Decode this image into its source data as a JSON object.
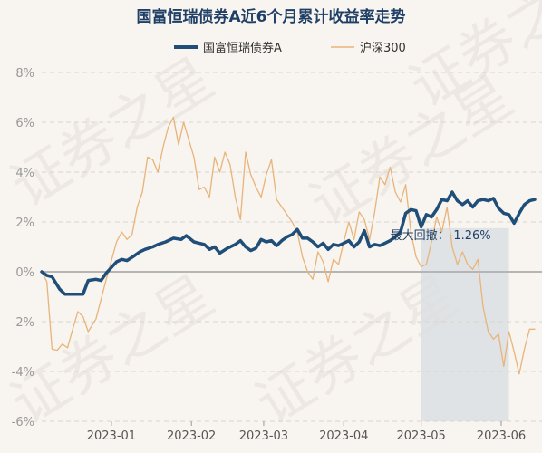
{
  "chart_data": {
    "type": "line",
    "title": "国富恒瑞债券A近6个月累计收益率走势",
    "ylim": [
      -6,
      8
    ],
    "yticks": [
      -6,
      -4,
      -2,
      0,
      2,
      4,
      6,
      8
    ],
    "ytick_labels": [
      "-6%",
      "-4%",
      "-2%",
      "0%",
      "2%",
      "4%",
      "6%",
      "8%"
    ],
    "x_range": [
      "2022-12-05",
      "2023-06-14"
    ],
    "xticks": [
      {
        "date": "2023-01-01",
        "label": "2023-01"
      },
      {
        "date": "2023-02-01",
        "label": "2023-02"
      },
      {
        "date": "2023-03-01",
        "label": "2023-03"
      },
      {
        "date": "2023-04-01",
        "label": "2023-04"
      },
      {
        "date": "2023-05-01",
        "label": "2023-05"
      },
      {
        "date": "2023-06-01",
        "label": "2023-06"
      }
    ],
    "grid": "horizontal",
    "legend_position": "top",
    "series": [
      {
        "name": "国富恒瑞债券A",
        "color": "#1f4e79",
        "points": [
          [
            "2022-12-05",
            0.0
          ],
          [
            "2022-12-07",
            -0.15
          ],
          [
            "2022-12-09",
            -0.2
          ],
          [
            "2022-12-12",
            -0.7
          ],
          [
            "2022-12-14",
            -0.9
          ],
          [
            "2022-12-16",
            -0.9
          ],
          [
            "2022-12-19",
            -0.9
          ],
          [
            "2022-12-21",
            -0.9
          ],
          [
            "2022-12-23",
            -0.35
          ],
          [
            "2022-12-26",
            -0.3
          ],
          [
            "2022-12-28",
            -0.35
          ],
          [
            "2022-12-30",
            -0.05
          ],
          [
            "2023-01-03",
            0.4
          ],
          [
            "2023-01-05",
            0.5
          ],
          [
            "2023-01-07",
            0.45
          ],
          [
            "2023-01-10",
            0.65
          ],
          [
            "2023-01-12",
            0.8
          ],
          [
            "2023-01-14",
            0.9
          ],
          [
            "2023-01-17",
            1.0
          ],
          [
            "2023-01-19",
            1.1
          ],
          [
            "2023-01-22",
            1.2
          ],
          [
            "2023-01-25",
            1.35
          ],
          [
            "2023-01-28",
            1.3
          ],
          [
            "2023-01-30",
            1.45
          ],
          [
            "2023-02-02",
            1.2
          ],
          [
            "2023-02-04",
            1.15
          ],
          [
            "2023-02-06",
            1.1
          ],
          [
            "2023-02-08",
            0.9
          ],
          [
            "2023-02-10",
            1.0
          ],
          [
            "2023-02-12",
            0.75
          ],
          [
            "2023-02-15",
            0.95
          ],
          [
            "2023-02-18",
            1.1
          ],
          [
            "2023-02-20",
            1.25
          ],
          [
            "2023-02-22",
            1.0
          ],
          [
            "2023-02-24",
            0.85
          ],
          [
            "2023-02-26",
            0.95
          ],
          [
            "2023-02-28",
            1.3
          ],
          [
            "2023-03-02",
            1.2
          ],
          [
            "2023-03-04",
            1.25
          ],
          [
            "2023-03-06",
            1.05
          ],
          [
            "2023-03-08",
            1.25
          ],
          [
            "2023-03-10",
            1.4
          ],
          [
            "2023-03-12",
            1.5
          ],
          [
            "2023-03-14",
            1.7
          ],
          [
            "2023-03-16",
            1.35
          ],
          [
            "2023-03-18",
            1.35
          ],
          [
            "2023-03-20",
            1.2
          ],
          [
            "2023-03-22",
            1.0
          ],
          [
            "2023-03-24",
            1.15
          ],
          [
            "2023-03-26",
            0.9
          ],
          [
            "2023-03-28",
            1.1
          ],
          [
            "2023-03-30",
            1.05
          ],
          [
            "2023-04-01",
            1.15
          ],
          [
            "2023-04-03",
            1.25
          ],
          [
            "2023-04-05",
            1.0
          ],
          [
            "2023-04-07",
            1.2
          ],
          [
            "2023-04-09",
            1.65
          ],
          [
            "2023-04-11",
            1.0
          ],
          [
            "2023-04-13",
            1.1
          ],
          [
            "2023-04-15",
            1.05
          ],
          [
            "2023-04-17",
            1.15
          ],
          [
            "2023-04-19",
            1.25
          ],
          [
            "2023-04-21",
            1.4
          ],
          [
            "2023-04-23",
            1.6
          ],
          [
            "2023-04-25",
            2.35
          ],
          [
            "2023-04-27",
            2.5
          ],
          [
            "2023-04-29",
            2.45
          ],
          [
            "2023-05-01",
            1.8
          ],
          [
            "2023-05-03",
            2.3
          ],
          [
            "2023-05-05",
            2.2
          ],
          [
            "2023-05-07",
            2.5
          ],
          [
            "2023-05-09",
            2.9
          ],
          [
            "2023-05-11",
            2.85
          ],
          [
            "2023-05-13",
            3.2
          ],
          [
            "2023-05-15",
            2.85
          ],
          [
            "2023-05-17",
            2.7
          ],
          [
            "2023-05-19",
            2.85
          ],
          [
            "2023-05-21",
            2.6
          ],
          [
            "2023-05-23",
            2.85
          ],
          [
            "2023-05-25",
            2.9
          ],
          [
            "2023-05-27",
            2.85
          ],
          [
            "2023-05-29",
            2.95
          ],
          [
            "2023-05-31",
            2.55
          ],
          [
            "2023-06-02",
            2.35
          ],
          [
            "2023-06-04",
            2.3
          ],
          [
            "2023-06-06",
            1.95
          ],
          [
            "2023-06-08",
            2.35
          ],
          [
            "2023-06-10",
            2.7
          ],
          [
            "2023-06-12",
            2.85
          ],
          [
            "2023-06-14",
            2.9
          ]
        ]
      },
      {
        "name": "沪深300",
        "color": "#e8b47a",
        "points": [
          [
            "2022-12-05",
            0.0
          ],
          [
            "2022-12-07",
            -0.4
          ],
          [
            "2022-12-09",
            -3.1
          ],
          [
            "2022-12-11",
            -3.15
          ],
          [
            "2022-12-13",
            -2.9
          ],
          [
            "2022-12-15",
            -3.05
          ],
          [
            "2022-12-17",
            -2.3
          ],
          [
            "2022-12-19",
            -1.6
          ],
          [
            "2022-12-21",
            -1.8
          ],
          [
            "2022-12-23",
            -2.4
          ],
          [
            "2022-12-26",
            -1.9
          ],
          [
            "2022-12-28",
            -1.1
          ],
          [
            "2022-12-30",
            -0.3
          ],
          [
            "2023-01-03",
            1.2
          ],
          [
            "2023-01-05",
            1.6
          ],
          [
            "2023-01-07",
            1.3
          ],
          [
            "2023-01-09",
            1.5
          ],
          [
            "2023-01-11",
            2.6
          ],
          [
            "2023-01-13",
            3.2
          ],
          [
            "2023-01-15",
            4.6
          ],
          [
            "2023-01-17",
            4.5
          ],
          [
            "2023-01-19",
            4.0
          ],
          [
            "2023-01-21",
            5.0
          ],
          [
            "2023-01-23",
            5.8
          ],
          [
            "2023-01-25",
            6.2
          ],
          [
            "2023-01-27",
            5.1
          ],
          [
            "2023-01-29",
            6.0
          ],
          [
            "2023-01-31",
            5.3
          ],
          [
            "2023-02-02",
            4.6
          ],
          [
            "2023-02-04",
            3.3
          ],
          [
            "2023-02-06",
            3.4
          ],
          [
            "2023-02-08",
            3.0
          ],
          [
            "2023-02-10",
            4.6
          ],
          [
            "2023-02-12",
            4.0
          ],
          [
            "2023-02-14",
            4.8
          ],
          [
            "2023-02-16",
            4.3
          ],
          [
            "2023-02-18",
            3.0
          ],
          [
            "2023-02-20",
            2.1
          ],
          [
            "2023-02-22",
            4.8
          ],
          [
            "2023-02-24",
            3.9
          ],
          [
            "2023-02-26",
            3.4
          ],
          [
            "2023-02-28",
            3.0
          ],
          [
            "2023-03-02",
            3.9
          ],
          [
            "2023-03-04",
            4.5
          ],
          [
            "2023-03-06",
            2.9
          ],
          [
            "2023-03-08",
            2.6
          ],
          [
            "2023-03-10",
            2.3
          ],
          [
            "2023-03-12",
            2.0
          ],
          [
            "2023-03-14",
            1.6
          ],
          [
            "2023-03-16",
            0.6
          ],
          [
            "2023-03-18",
            0.0
          ],
          [
            "2023-03-20",
            -0.3
          ],
          [
            "2023-03-22",
            0.8
          ],
          [
            "2023-03-24",
            0.4
          ],
          [
            "2023-03-26",
            -0.4
          ],
          [
            "2023-03-28",
            0.5
          ],
          [
            "2023-03-30",
            0.3
          ],
          [
            "2023-04-01",
            1.2
          ],
          [
            "2023-04-03",
            2.0
          ],
          [
            "2023-04-05",
            1.3
          ],
          [
            "2023-04-07",
            2.4
          ],
          [
            "2023-04-09",
            2.1
          ],
          [
            "2023-04-11",
            1.3
          ],
          [
            "2023-04-13",
            2.4
          ],
          [
            "2023-04-15",
            3.8
          ],
          [
            "2023-04-17",
            3.5
          ],
          [
            "2023-04-19",
            4.2
          ],
          [
            "2023-04-21",
            3.2
          ],
          [
            "2023-04-23",
            2.8
          ],
          [
            "2023-04-25",
            3.5
          ],
          [
            "2023-04-27",
            1.6
          ],
          [
            "2023-04-29",
            0.6
          ],
          [
            "2023-05-01",
            0.2
          ],
          [
            "2023-05-03",
            0.3
          ],
          [
            "2023-05-05",
            1.2
          ],
          [
            "2023-05-07",
            2.2
          ],
          [
            "2023-05-09",
            1.6
          ],
          [
            "2023-05-11",
            2.6
          ],
          [
            "2023-05-13",
            1.0
          ],
          [
            "2023-05-15",
            0.3
          ],
          [
            "2023-05-17",
            0.8
          ],
          [
            "2023-05-19",
            0.3
          ],
          [
            "2023-05-21",
            0.1
          ],
          [
            "2023-05-23",
            0.5
          ],
          [
            "2023-05-25",
            -1.4
          ],
          [
            "2023-05-27",
            -2.4
          ],
          [
            "2023-05-29",
            -2.7
          ],
          [
            "2023-05-31",
            -2.5
          ],
          [
            "2023-06-02",
            -3.8
          ],
          [
            "2023-06-04",
            -2.4
          ],
          [
            "2023-06-06",
            -3.2
          ],
          [
            "2023-06-08",
            -4.1
          ],
          [
            "2023-06-10",
            -3.1
          ],
          [
            "2023-06-12",
            -2.3
          ],
          [
            "2023-06-14",
            -2.3
          ]
        ]
      }
    ],
    "annotations": [
      {
        "text": "最大回撤：-1.26%",
        "date_start": "2023-05-01",
        "date_end": "2023-06-04",
        "color": "#d8dde2"
      }
    ],
    "watermark": "证券之星",
    "zero_line_color": "#b5b5b5"
  }
}
